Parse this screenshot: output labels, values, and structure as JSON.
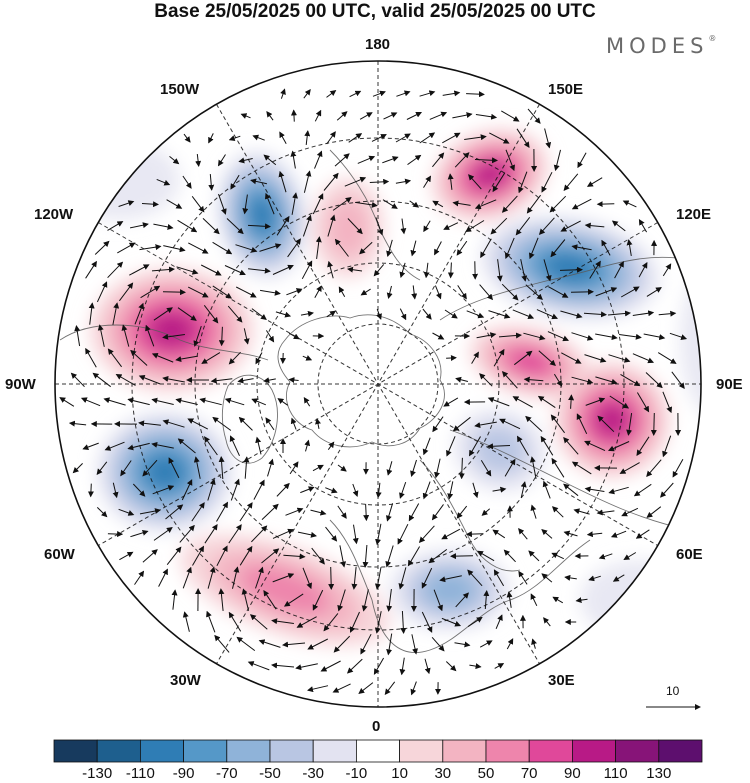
{
  "title": "Base 25/05/2025 00 UTC, valid 25/05/2025 00 UTC",
  "brand": "MODES",
  "brand_mark": "®",
  "longitude_labels": {
    "lon_180": "180",
    "lon_150e": "150E",
    "lon_120e": "120E",
    "lon_90e": "90E",
    "lon_60e": "60E",
    "lon_30e": "30E",
    "lon_0": "0",
    "lon_30w": "30W",
    "lon_60w": "60W",
    "lon_90w": "90W",
    "lon_120w": "120W",
    "lon_150w": "150W"
  },
  "reference_vector": {
    "label": "10"
  },
  "colorbar": {
    "ticks": [
      "-130",
      "-110",
      "-90",
      "-70",
      "-50",
      "-30",
      "-10",
      "10",
      "30",
      "50",
      "70",
      "90",
      "110",
      "130"
    ],
    "colors": [
      "#173a5e",
      "#1e5f8e",
      "#2f7db5",
      "#5598c8",
      "#8fb3d9",
      "#b9c6e3",
      "#e3e3f1",
      "#ffffff",
      "#f7d6da",
      "#f3b4c2",
      "#ee85ac",
      "#e0489a",
      "#b81a86",
      "#871478",
      "#5d0f6e"
    ]
  },
  "anomaly_centers": [
    {
      "id": "blue-pacific-nw",
      "sign": "negative",
      "value": -90
    },
    {
      "id": "pink-bering",
      "sign": "positive",
      "value": 90
    },
    {
      "id": "pink-chukchi",
      "sign": "positive",
      "value": 30
    },
    {
      "id": "blue-siberia",
      "sign": "negative",
      "value": -90
    },
    {
      "id": "pink-central-siberia",
      "sign": "positive",
      "value": 70
    },
    {
      "id": "pink-west-siberia",
      "sign": "positive",
      "value": 90
    },
    {
      "id": "blue-barents",
      "sign": "negative",
      "value": -30
    },
    {
      "id": "pink-canada",
      "sign": "positive",
      "value": 90
    },
    {
      "id": "blue-labrador",
      "sign": "negative",
      "value": -90
    },
    {
      "id": "pink-north-atlantic",
      "sign": "positive",
      "value": 50
    },
    {
      "id": "blue-europe",
      "sign": "negative",
      "value": -50
    }
  ]
}
